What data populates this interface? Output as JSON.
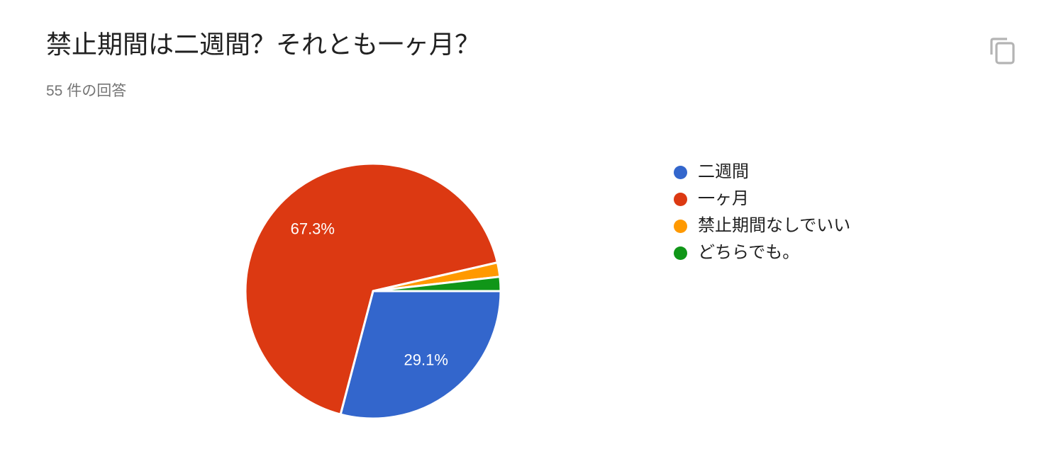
{
  "header": {
    "title": "禁止期間は二週間？それとも一ヶ月？",
    "responses_label": "55 件の回答"
  },
  "icons": {
    "copy_icon_color": "#B4B4B4"
  },
  "chart_data": {
    "type": "pie",
    "title": "禁止期間は二週間？それとも一ヶ月？",
    "subtitle": "55 件の回答",
    "total_responses_shown": "55",
    "categories": [
      "二週間",
      "一ヶ月",
      "禁止期間なしでいい",
      "どちらでも。"
    ],
    "values_percent": [
      29.1,
      67.3,
      1.8,
      1.8
    ],
    "slice_labels": [
      "29.1%",
      "67.3%",
      "",
      ""
    ],
    "colors": [
      "#3366CC",
      "#DC3912",
      "#FF9900",
      "#109618"
    ],
    "slice_border_color": "#FFFFFF",
    "start_angle_deg": 90,
    "direction": "clockwise",
    "legend_position": "right",
    "label_min_percent": 5,
    "label_radius_ratio": 0.68
  }
}
